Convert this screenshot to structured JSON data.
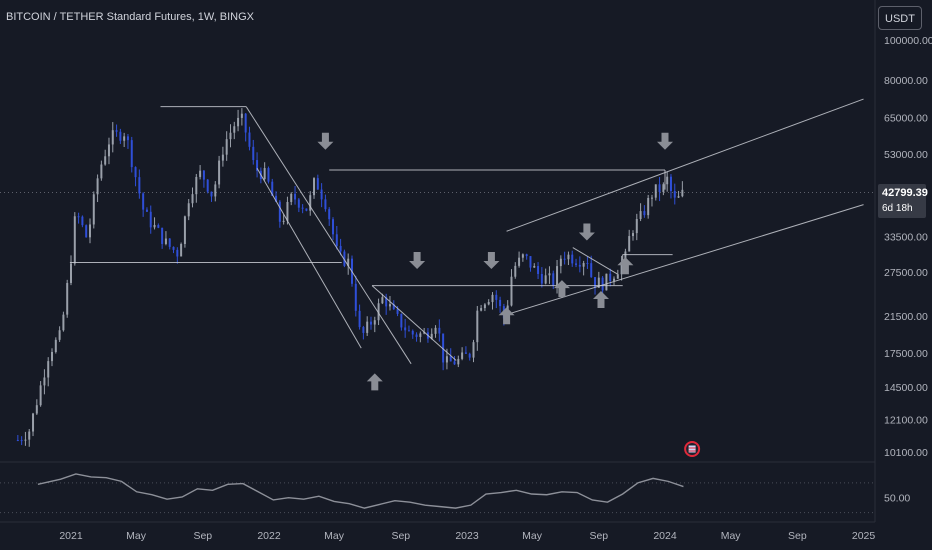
{
  "header": {
    "title": "BITCOIN / TETHER Standard Futures, 1W, BINGX",
    "currency_label": "USDT"
  },
  "price_tag": {
    "price": "42799.39",
    "countdown": "6d 18h"
  },
  "colors": {
    "background": "#161a25",
    "candle_up": "#9aa0aa",
    "candle_down": "#2f4fd8",
    "lines": "#c8cbd2",
    "arrows": "#8a8d95",
    "rsi_line": "#8d9099",
    "axis_text": "#b2b5be"
  },
  "chart_data": [
    {
      "type": "candlestick",
      "scale": "log",
      "y_axis_labels": [
        "100000.00",
        "80000.00",
        "65000.00",
        "53000.00",
        "42799.39",
        "33500.00",
        "27500.00",
        "21500.00",
        "17500.00",
        "14500.00",
        "12100.00",
        "10100.00"
      ],
      "x_axis_labels": [
        "2021",
        "May",
        "Sep",
        "2022",
        "May",
        "Sep",
        "2023",
        "May",
        "Sep",
        "2024",
        "May",
        "Sep",
        "2025"
      ],
      "x_tick_dates": [
        "2021-01-01",
        "2021-05-01",
        "2021-09-01",
        "2022-01-01",
        "2022-05-01",
        "2022-09-01",
        "2023-01-01",
        "2023-05-01",
        "2023-09-01",
        "2024-01-01",
        "2024-05-01",
        "2024-09-01",
        "2025-01-01"
      ],
      "ylim": [
        9000,
        110000
      ],
      "last_price": 42799.39,
      "weekly_close_path": [
        [
          "2020-09-25",
          10800
        ],
        [
          "2020-10-16",
          11400
        ],
        [
          "2020-11-01",
          13700
        ],
        [
          "2020-11-22",
          17700
        ],
        [
          "2020-12-13",
          19300
        ],
        [
          "2020-12-31",
          29000
        ],
        [
          "2021-01-10",
          38500
        ],
        [
          "2021-01-31",
          33000
        ],
        [
          "2021-02-21",
          48000
        ],
        [
          "2021-03-14",
          58000
        ],
        [
          "2021-04-11",
          60000
        ],
        [
          "2021-04-25",
          50000
        ],
        [
          "2021-05-16",
          38000
        ],
        [
          "2021-06-06",
          35000
        ],
        [
          "2021-06-27",
          32000
        ],
        [
          "2021-07-18",
          30500
        ],
        [
          "2021-08-08",
          43000
        ],
        [
          "2021-08-29",
          48000
        ],
        [
          "2021-09-19",
          42000
        ],
        [
          "2021-10-10",
          56000
        ],
        [
          "2021-10-31",
          63000
        ],
        [
          "2021-11-14",
          64000
        ],
        [
          "2021-12-05",
          49000
        ],
        [
          "2021-12-26",
          47000
        ],
        [
          "2022-01-23",
          36000
        ],
        [
          "2022-02-13",
          42000
        ],
        [
          "2022-03-13",
          39000
        ],
        [
          "2022-03-27",
          46000
        ],
        [
          "2022-04-17",
          40000
        ],
        [
          "2022-05-08",
          30000
        ],
        [
          "2022-05-29",
          29000
        ],
        [
          "2022-06-19",
          19000
        ],
        [
          "2022-07-10",
          21000
        ],
        [
          "2022-07-31",
          24000
        ],
        [
          "2022-08-21",
          21500
        ],
        [
          "2022-09-18",
          19500
        ],
        [
          "2022-10-16",
          19400
        ],
        [
          "2022-11-06",
          21000
        ],
        [
          "2022-11-20",
          16500
        ],
        [
          "2022-12-18",
          16800
        ],
        [
          "2023-01-08",
          17500
        ],
        [
          "2023-01-22",
          23000
        ],
        [
          "2023-02-19",
          24500
        ],
        [
          "2023-03-12",
          21000
        ],
        [
          "2023-03-26",
          28000
        ],
        [
          "2023-04-16",
          30000
        ],
        [
          "2023-05-14",
          27000
        ],
        [
          "2023-06-11",
          26000
        ],
        [
          "2023-06-25",
          30500
        ],
        [
          "2023-07-23",
          29500
        ],
        [
          "2023-08-13",
          29500
        ],
        [
          "2023-08-20",
          26000
        ],
        [
          "2023-09-10",
          25800
        ],
        [
          "2023-10-01",
          27500
        ],
        [
          "2023-10-22",
          30000
        ],
        [
          "2023-10-29",
          34500
        ],
        [
          "2023-11-19",
          37500
        ],
        [
          "2023-12-10",
          43000
        ],
        [
          "2023-12-31",
          44000
        ],
        [
          "2024-01-07",
          46800
        ],
        [
          "2024-01-14",
          41500
        ],
        [
          "2024-01-21",
          40500
        ],
        [
          "2024-02-04",
          42799.39
        ]
      ],
      "trendlines": [
        {
          "from": [
            "2021-11-07",
            68000
          ],
          "to": [
            "2021-11-07",
            68000
          ],
          "kind": "marker"
        },
        {
          "from": [
            "2021-06-15",
            69000
          ],
          "to": [
            "2021-11-20",
            69000
          ]
        },
        {
          "from": [
            "2021-11-20",
            69000
          ],
          "to": [
            "2022-09-20",
            16500
          ]
        },
        {
          "from": [
            "2021-12-10",
            49000
          ],
          "to": [
            "2022-06-20",
            18000
          ]
        },
        {
          "from": [
            "2020-12-30",
            29000
          ],
          "to": [
            "2022-05-15",
            29000
          ]
        },
        {
          "from": [
            "2022-04-22",
            48500
          ],
          "to": [
            "2024-01-01",
            48500
          ]
        },
        {
          "from": [
            "2024-01-01",
            48500
          ],
          "to": [
            "2024-01-01",
            43500
          ]
        },
        {
          "from": [
            "2022-07-10",
            25500
          ],
          "to": [
            "2023-10-15",
            25500
          ]
        },
        {
          "from": [
            "2022-07-10",
            25500
          ],
          "to": [
            "2022-12-12",
            16800
          ]
        },
        {
          "from": [
            "2023-03-15",
            34500
          ],
          "to": [
            "2025-01-01",
            72000
          ]
        },
        {
          "from": [
            "2023-03-15",
            21700
          ],
          "to": [
            "2025-01-01",
            40000
          ]
        },
        {
          "from": [
            "2023-07-15",
            31500
          ],
          "to": [
            "2023-10-05",
            27200
          ]
        },
        {
          "from": [
            "2023-10-15",
            30300
          ],
          "to": [
            "2024-01-15",
            30300
          ]
        },
        {
          "from": [
            "2023-10-15",
            30300
          ],
          "to": [
            "2023-10-15",
            27700
          ]
        }
      ],
      "arrows_down": [
        [
          "2022-04-15",
          55500
        ],
        [
          "2022-10-01",
          28600
        ],
        [
          "2023-02-15",
          28600
        ],
        [
          "2023-08-10",
          33500
        ],
        [
          "2024-01-01",
          55500
        ]
      ],
      "arrows_up": [
        [
          "2022-07-15",
          15300
        ],
        [
          "2023-03-15",
          22100
        ],
        [
          "2023-06-25",
          25700
        ],
        [
          "2023-09-05",
          24200
        ],
        [
          "2023-10-20",
          29200
        ]
      ]
    },
    {
      "type": "line",
      "name": "",
      "y_axis_labels": [
        "50.00"
      ],
      "ylim": [
        20,
        90
      ],
      "dotted_levels": [
        70,
        30
      ],
      "x": [
        "2020-11-01",
        "2020-12-13",
        "2021-01-10",
        "2021-02-07",
        "2021-03-07",
        "2021-04-04",
        "2021-05-02",
        "2021-05-30",
        "2021-06-27",
        "2021-07-25",
        "2021-08-22",
        "2021-09-19",
        "2021-10-17",
        "2021-11-14",
        "2021-12-12",
        "2022-01-09",
        "2022-02-06",
        "2022-03-06",
        "2022-04-03",
        "2022-05-01",
        "2022-05-29",
        "2022-06-26",
        "2022-07-24",
        "2022-08-21",
        "2022-09-18",
        "2022-10-16",
        "2022-11-13",
        "2022-12-11",
        "2023-01-08",
        "2023-02-05",
        "2023-03-05",
        "2023-04-02",
        "2023-04-30",
        "2023-05-28",
        "2023-06-25",
        "2023-07-23",
        "2023-08-20",
        "2023-09-17",
        "2023-10-15",
        "2023-11-12",
        "2023-12-10",
        "2024-01-07",
        "2024-02-04"
      ],
      "values": [
        68,
        75,
        82,
        78,
        77,
        72,
        58,
        54,
        48,
        51,
        62,
        60,
        68,
        69,
        58,
        47,
        50,
        48,
        52,
        45,
        42,
        36,
        41,
        46,
        44,
        40,
        38,
        36,
        40,
        55,
        57,
        60,
        55,
        54,
        58,
        57,
        47,
        44,
        55,
        70,
        76,
        72,
        65
      ]
    }
  ]
}
